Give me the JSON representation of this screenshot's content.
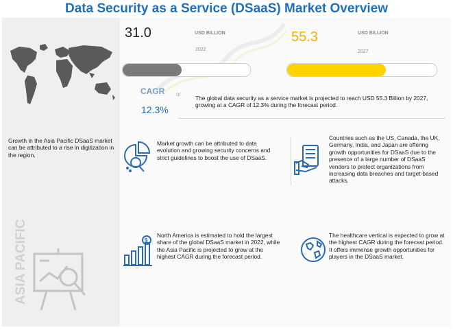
{
  "title": "Data Security as a Service (DSaaS) Market Overview",
  "market": {
    "value_2022": "31.0",
    "unit_2022": "USD BILLION",
    "year_2022": "2022",
    "value_2027": "55.3",
    "unit_2027": "USD BILLION",
    "year_2027": "2027",
    "bar_2022_fill": 0.46,
    "bar_2027_fill": 0.66,
    "bar_2022_color": "#7a7a7a",
    "bar_2027_color": "#ffd200"
  },
  "cagr": {
    "label": "CAGR",
    "value": "12.3%",
    "or": "or"
  },
  "summary": "The global data security as a service market is projected to reach USD 55.3 Billion by 2027, growing at a CAGR of 12.3% during the forecast period.",
  "asia": {
    "text": "Growth in the Asia Pacific DSaaS market can be attributed to a rise in digitization in the region.",
    "vertical_label": "ASIA PACIFIC"
  },
  "insights": {
    "growth": "Market growth can be attributed to data evolution and growing security concerns and strict guidelines to boost the use of DSaaS.",
    "countries": "Countries such as the US, Canada, the UK, Germany, India, and Japan are offering growth opportunities for DSaaS due to the presence of a large number of DSaaS vendors to protect organizations from increasing data breaches and target-based attacks.",
    "north_america": "North America is estimated to hold the largest share of the global DSaaS market in 2022, while the Asia Pacific is projected to grow at the highest CAGR during the forecast period.",
    "healthcare": "The healthcare vertical is expected to grow at the highest CAGR during the forecast period. It offers immense growth opportunities for players in the DSaaS market."
  },
  "colors": {
    "title": "#1f6fbf",
    "icon_blue": "#2a6ab3"
  }
}
